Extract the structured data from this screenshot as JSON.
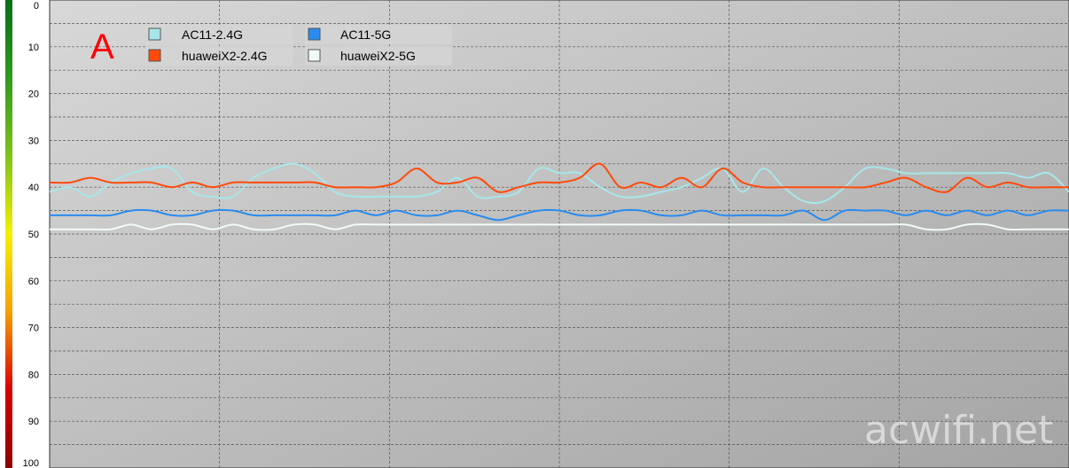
{
  "chart_data": {
    "type": "line",
    "title": "",
    "xlabel": "",
    "ylabel": "",
    "ylim": [
      0,
      100
    ],
    "y_inverted": true,
    "y_ticks": [
      "0",
      "10",
      "20",
      "30",
      "40",
      "50",
      "60",
      "70",
      "80",
      "90",
      "100"
    ],
    "grid": true,
    "legend_placement": "top-left",
    "panel_label": "A",
    "watermark": "acwifi.net",
    "colorbar": {
      "stops": [
        "#0a6d18",
        "#2f9a1c",
        "#7ec21a",
        "#f5f000",
        "#f5a000",
        "#d80000",
        "#8c0000"
      ]
    },
    "x": [
      0,
      2,
      4,
      6,
      8,
      10,
      12,
      14,
      16,
      18,
      20,
      22,
      24,
      26,
      28,
      30,
      32,
      34,
      36,
      38,
      40,
      42,
      44,
      46,
      48,
      50,
      52,
      54,
      56,
      58,
      60,
      62,
      64,
      66,
      68,
      70,
      72,
      74,
      76,
      78,
      80,
      82,
      84,
      86,
      88,
      90,
      92,
      94,
      96,
      98,
      100
    ],
    "series": [
      {
        "name": "AC11-2.4G",
        "color": "#a8e6ea",
        "values": [
          41,
          40,
          42,
          39,
          37,
          36,
          36,
          41,
          42,
          42,
          38,
          36,
          35,
          37,
          41,
          42,
          42,
          42,
          42,
          41,
          38,
          42,
          42,
          41,
          36,
          37,
          37,
          40,
          42,
          42,
          41,
          40,
          38,
          36,
          41,
          36,
          40,
          43,
          43,
          40,
          36,
          36,
          37,
          37,
          37,
          37,
          37,
          37,
          38,
          37,
          41
        ]
      },
      {
        "name": "AC11-5G",
        "color": "#2a8cf0",
        "values": [
          46,
          46,
          46,
          46,
          45,
          45,
          46,
          46,
          45,
          45,
          46,
          46,
          46,
          46,
          46,
          45,
          46,
          45,
          46,
          46,
          45,
          46,
          47,
          46,
          45,
          45,
          46,
          46,
          45,
          45,
          46,
          46,
          45,
          46,
          46,
          46,
          46,
          45,
          47,
          45,
          45,
          45,
          46,
          45,
          46,
          45,
          46,
          45,
          46,
          45,
          45
        ]
      },
      {
        "name": "huaweiX2-2.4G",
        "color": "#ff4a0a",
        "values": [
          39,
          39,
          38,
          39,
          39,
          39,
          40,
          39,
          40,
          39,
          39,
          39,
          39,
          39,
          40,
          40,
          40,
          39,
          36,
          39,
          39,
          38,
          41,
          40,
          39,
          39,
          38,
          35,
          40,
          39,
          40,
          38,
          40,
          36,
          39,
          40,
          40,
          40,
          40,
          40,
          40,
          39,
          38,
          40,
          41,
          38,
          40,
          39,
          40,
          40,
          40
        ]
      },
      {
        "name": "huaweiX2-5G",
        "color": "#f2fbf8",
        "values": [
          49,
          49,
          49,
          49,
          48,
          49,
          48,
          48,
          49,
          48,
          49,
          49,
          48,
          48,
          49,
          48,
          48,
          48,
          48,
          48,
          48,
          48,
          48,
          48,
          48,
          48,
          48,
          48,
          48,
          48,
          48,
          48,
          48,
          48,
          48,
          48,
          48,
          48,
          48,
          48,
          48,
          48,
          48,
          49,
          49,
          48,
          48,
          49,
          49,
          49,
          49
        ]
      }
    ]
  }
}
